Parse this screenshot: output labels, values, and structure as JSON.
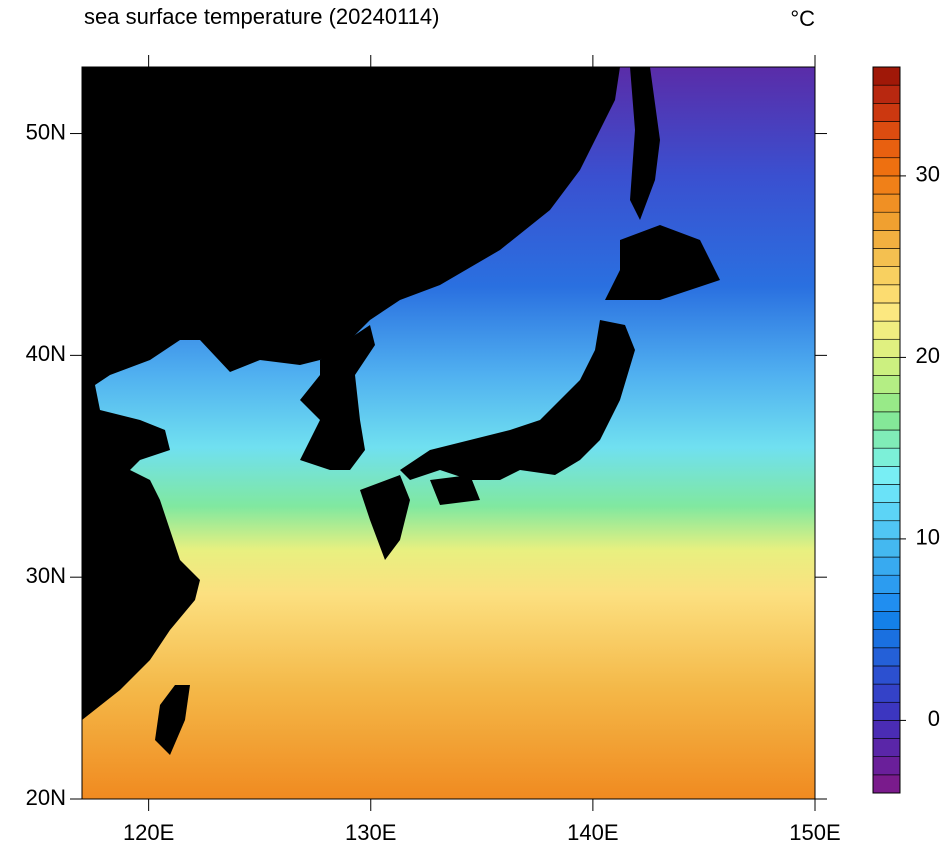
{
  "map": {
    "title": "sea surface temperature (20240114)",
    "unit": "°C",
    "xlim": [
      117,
      150
    ],
    "ylim": [
      20,
      53
    ],
    "xticks": [
      {
        "value": 120,
        "label": "120E"
      },
      {
        "value": 130,
        "label": "130E"
      },
      {
        "value": 140,
        "label": "140E"
      },
      {
        "value": 150,
        "label": "150E"
      }
    ],
    "yticks": [
      {
        "value": 20,
        "label": "20N"
      },
      {
        "value": 30,
        "label": "30N"
      },
      {
        "value": 40,
        "label": "40N"
      },
      {
        "value": 50,
        "label": "50N"
      }
    ],
    "colorbar": {
      "lim": [
        -4,
        36
      ],
      "ticks": [
        0,
        10,
        20,
        30
      ],
      "colors": [
        "#7a1b8c",
        "#6a1f9a",
        "#5a26a8",
        "#4a2cb4",
        "#3c36c0",
        "#3442c8",
        "#2c50d0",
        "#2460d8",
        "#1a70e0",
        "#1480e8",
        "#208ef0",
        "#2c9cf0",
        "#38aaf0",
        "#44b8f0",
        "#50c6f4",
        "#5cd4f6",
        "#6ae2f8",
        "#78eef4",
        "#7cf0d8",
        "#80ecb8",
        "#84e898",
        "#98ea88",
        "#b4ee84",
        "#ccf080",
        "#e0f080",
        "#f0ee80",
        "#fce880",
        "#fcdc70",
        "#f8d060",
        "#f4c050",
        "#f2b040",
        "#f0a030",
        "#f09024",
        "#f08018",
        "#ee7010",
        "#e86010",
        "#dc4c10",
        "#cc3810",
        "#b82810",
        "#a01808"
      ]
    }
  }
}
